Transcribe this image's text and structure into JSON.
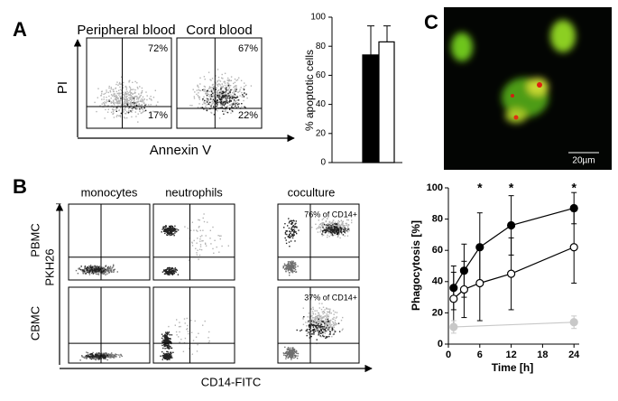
{
  "panel_labels": [
    "A",
    "B",
    "C"
  ],
  "panel_a": {
    "y_axis_label": "PI",
    "x_axis_label": "Annexin V",
    "plots": [
      {
        "title": "Peripheral blood",
        "upper_right": "72%",
        "lower_right": "17%"
      },
      {
        "title": "Cord blood",
        "upper_right": "67%",
        "lower_right": "22%"
      }
    ]
  },
  "panel_b": {
    "dash": "–",
    "columns": [
      "monocytes",
      "neutrophils",
      "coculture"
    ],
    "rows": [
      "PBMC",
      "CBMC"
    ],
    "y_axis_label": "PKH26",
    "x_axis_label": "CD14-FITC",
    "annotations": [
      "76% of CD14+",
      "37% of CD14+"
    ]
  },
  "panel_c": {
    "scale_bar": "20µm"
  },
  "chart_data": [
    {
      "type": "bar",
      "y_label": "% apoptotic cells",
      "values": [
        74,
        83
      ],
      "errors": [
        20,
        11
      ],
      "colors": [
        "#000000",
        "#ffffff"
      ],
      "ylim": [
        0,
        100
      ],
      "yticks": [
        0,
        20,
        40,
        60,
        80,
        100
      ]
    },
    {
      "type": "line",
      "x_label": "Time [h]",
      "y_label": "Phagocytosis [%]",
      "x": [
        1,
        3,
        6,
        12,
        24
      ],
      "xlim": [
        0,
        25
      ],
      "xticks": [
        0,
        6,
        12,
        18,
        24
      ],
      "ylim": [
        0,
        100
      ],
      "yticks": [
        0,
        20,
        40,
        60,
        80,
        100
      ],
      "significance_marker": "*",
      "significant_at": [
        6,
        12,
        24
      ],
      "series": [
        {
          "color": "#000000",
          "marker_fill": "#000000",
          "values": [
            36,
            47,
            62,
            76,
            87
          ],
          "errors": [
            14,
            17,
            22,
            19,
            10
          ]
        },
        {
          "color": "#000000",
          "marker_fill": "#ffffff",
          "values": [
            29,
            35,
            39,
            45,
            62
          ],
          "errors": [
            17,
            18,
            24,
            23,
            23
          ]
        },
        {
          "color": "#c8c8c8",
          "marker_fill": "#c8c8c8",
          "x": [
            1,
            24
          ],
          "values": [
            11,
            14
          ],
          "errors": [
            4,
            4
          ]
        }
      ]
    }
  ]
}
